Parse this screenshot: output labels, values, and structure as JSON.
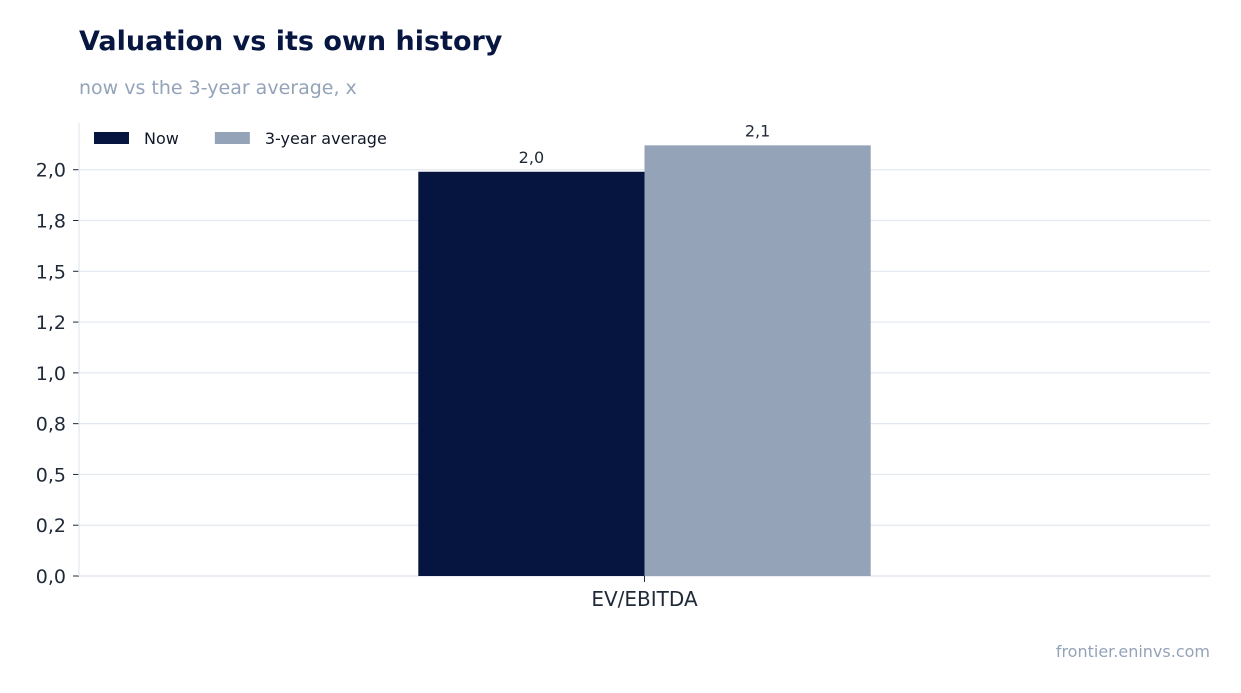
{
  "chart_data": {
    "type": "bar",
    "title": "Valuation vs its own history",
    "subtitle": "now vs the 3-year average, x",
    "categories": [
      "EV/EBITDA"
    ],
    "series": [
      {
        "name": "Now",
        "values": [
          1.99
        ],
        "color": "#061540",
        "label": "2,0"
      },
      {
        "name": "3-year average",
        "values": [
          2.12
        ],
        "color": "#94a3b8",
        "label": "2,1"
      }
    ],
    "ylim": [
      0,
      2.23
    ],
    "yticks": [
      {
        "value": 0.0,
        "label": "0,0"
      },
      {
        "value": 0.25,
        "label": "0,2"
      },
      {
        "value": 0.5,
        "label": "0,5"
      },
      {
        "value": 0.75,
        "label": "0,8"
      },
      {
        "value": 1.0,
        "label": "1,0"
      },
      {
        "value": 1.25,
        "label": "1,2"
      },
      {
        "value": 1.5,
        "label": "1,5"
      },
      {
        "value": 1.75,
        "label": "1,8"
      },
      {
        "value": 2.0,
        "label": "2,0"
      }
    ],
    "grid": true,
    "legend_position": "top-left",
    "source": "frontier.eninvs.com"
  }
}
